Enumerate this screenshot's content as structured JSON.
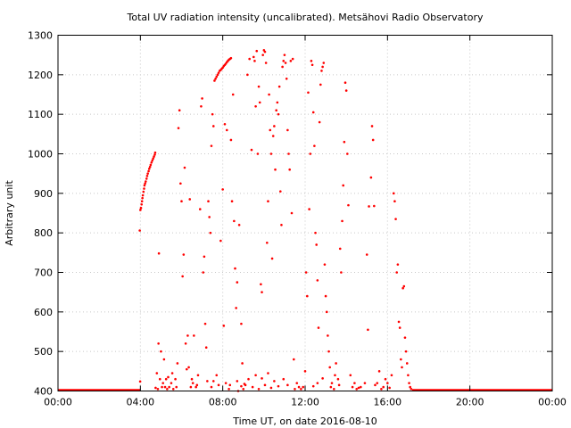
{
  "chart_data": {
    "type": "scatter",
    "title": "Total UV radiation intensity (uncalibrated). Metsähovi Radio Observatory",
    "xlabel": "Time UT, on date 2016-08-10",
    "ylabel": "Arbitrary unit",
    "xlim": [
      0,
      24
    ],
    "ylim": [
      400,
      1300
    ],
    "x_ticks": [
      0,
      4,
      8,
      12,
      16,
      20,
      24
    ],
    "x_tick_labels": [
      "00:00",
      "04:00",
      "08:00",
      "12:00",
      "16:00",
      "20:00",
      "00:00"
    ],
    "y_ticks": [
      400,
      500,
      600,
      700,
      800,
      900,
      1000,
      1100,
      1200,
      1300
    ],
    "y_tick_labels": [
      "400",
      "500",
      "600",
      "700",
      "800",
      "900",
      "1000",
      "1100",
      "1200",
      "1300"
    ],
    "grid": true,
    "legend": "none",
    "color": "#ff0000",
    "baseline_segments": [
      [
        0,
        4.0,
        400
      ],
      [
        17.2,
        24,
        400
      ]
    ],
    "series": [
      {
        "values": [
          [
            3.97,
            806
          ],
          [
            3.99,
            424
          ],
          [
            4.0,
            858
          ],
          [
            4.03,
            863
          ],
          [
            4.06,
            872
          ],
          [
            4.08,
            880
          ],
          [
            4.1,
            888
          ],
          [
            4.12,
            895
          ],
          [
            4.15,
            904
          ],
          [
            4.18,
            912
          ],
          [
            4.2,
            920
          ],
          [
            4.23,
            925
          ],
          [
            4.26,
            930
          ],
          [
            4.3,
            937
          ],
          [
            4.33,
            944
          ],
          [
            4.36,
            950
          ],
          [
            4.4,
            956
          ],
          [
            4.43,
            962
          ],
          [
            4.47,
            967
          ],
          [
            4.5,
            972
          ],
          [
            4.54,
            978
          ],
          [
            4.58,
            983
          ],
          [
            4.62,
            988
          ],
          [
            4.66,
            993
          ],
          [
            4.7,
            998
          ],
          [
            4.72,
            1003
          ],
          [
            4.74,
            408
          ],
          [
            4.8,
            445
          ],
          [
            4.85,
            405
          ],
          [
            4.88,
            520
          ],
          [
            4.9,
            748
          ],
          [
            4.95,
            430
          ],
          [
            5.0,
            500
          ],
          [
            5.05,
            410
          ],
          [
            5.1,
            420
          ],
          [
            5.15,
            480
          ],
          [
            5.2,
            410
          ],
          [
            5.25,
            430
          ],
          [
            5.3,
            405
          ],
          [
            5.4,
            410
          ],
          [
            5.5,
            420
          ],
          [
            5.6,
            405
          ],
          [
            5.7,
            430
          ],
          [
            5.8,
            470
          ],
          [
            5.85,
            1065
          ],
          [
            5.9,
            1110
          ],
          [
            5.95,
            925
          ],
          [
            6.0,
            880
          ],
          [
            6.05,
            690
          ],
          [
            6.1,
            745
          ],
          [
            6.15,
            965
          ],
          [
            6.2,
            520
          ],
          [
            6.25,
            455
          ],
          [
            6.3,
            540
          ],
          [
            6.4,
            885
          ],
          [
            6.45,
            410
          ],
          [
            6.5,
            430
          ],
          [
            6.55,
            420
          ],
          [
            6.6,
            540
          ],
          [
            6.7,
            410
          ],
          [
            6.8,
            440
          ],
          [
            6.9,
            860
          ],
          [
            6.95,
            1120
          ],
          [
            7.0,
            1140
          ],
          [
            7.05,
            700
          ],
          [
            7.1,
            740
          ],
          [
            7.15,
            570
          ],
          [
            7.2,
            510
          ],
          [
            7.3,
            880
          ],
          [
            7.35,
            840
          ],
          [
            7.4,
            800
          ],
          [
            7.45,
            1020
          ],
          [
            7.5,
            1100
          ],
          [
            7.55,
            1070
          ],
          [
            7.6,
            1185
          ],
          [
            7.65,
            1190
          ],
          [
            7.7,
            1195
          ],
          [
            7.75,
            1200
          ],
          [
            7.8,
            1205
          ],
          [
            7.85,
            1210
          ],
          [
            7.9,
            1212
          ],
          [
            7.95,
            1215
          ],
          [
            8.0,
            1218
          ],
          [
            8.05,
            1222
          ],
          [
            8.1,
            1225
          ],
          [
            8.15,
            1228
          ],
          [
            8.2,
            1232
          ],
          [
            8.25,
            1235
          ],
          [
            8.3,
            1238
          ],
          [
            8.35,
            1240
          ],
          [
            8.4,
            1242
          ],
          [
            7.55,
            425
          ],
          [
            7.7,
            440
          ],
          [
            7.8,
            415
          ],
          [
            7.9,
            780
          ],
          [
            8.0,
            910
          ],
          [
            8.05,
            565
          ],
          [
            8.1,
            1075
          ],
          [
            8.2,
            1060
          ],
          [
            8.3,
            405
          ],
          [
            8.4,
            1035
          ],
          [
            8.45,
            880
          ],
          [
            8.5,
            1150
          ],
          [
            8.55,
            830
          ],
          [
            8.6,
            710
          ],
          [
            8.65,
            610
          ],
          [
            8.7,
            675
          ],
          [
            8.75,
            400
          ],
          [
            8.8,
            820
          ],
          [
            8.9,
            570
          ],
          [
            8.95,
            470
          ],
          [
            9.0,
            405
          ],
          [
            9.1,
            415
          ],
          [
            9.2,
            1200
          ],
          [
            9.3,
            1240
          ],
          [
            9.4,
            1010
          ],
          [
            9.5,
            1245
          ],
          [
            9.55,
            1235
          ],
          [
            9.6,
            1120
          ],
          [
            9.65,
            1260
          ],
          [
            9.7,
            1000
          ],
          [
            9.75,
            1170
          ],
          [
            9.8,
            1130
          ],
          [
            9.85,
            670
          ],
          [
            9.9,
            650
          ],
          [
            9.95,
            1250
          ],
          [
            10.0,
            1262
          ],
          [
            10.05,
            1258
          ],
          [
            10.1,
            1230
          ],
          [
            10.15,
            775
          ],
          [
            10.2,
            880
          ],
          [
            10.25,
            1150
          ],
          [
            10.3,
            1060
          ],
          [
            10.35,
            1000
          ],
          [
            10.4,
            735
          ],
          [
            10.45,
            1045
          ],
          [
            10.5,
            1070
          ],
          [
            10.55,
            960
          ],
          [
            10.6,
            1110
          ],
          [
            10.65,
            1130
          ],
          [
            10.7,
            1100
          ],
          [
            10.75,
            1170
          ],
          [
            10.8,
            905
          ],
          [
            10.85,
            820
          ],
          [
            10.9,
            1220
          ],
          [
            10.95,
            1235
          ],
          [
            11.0,
            1250
          ],
          [
            11.05,
            1230
          ],
          [
            11.1,
            1190
          ],
          [
            11.15,
            1060
          ],
          [
            11.2,
            1000
          ],
          [
            11.25,
            960
          ],
          [
            11.3,
            1235
          ],
          [
            11.35,
            850
          ],
          [
            11.4,
            1240
          ],
          [
            11.45,
            480
          ],
          [
            11.5,
            405
          ],
          [
            11.6,
            420
          ],
          [
            11.7,
            410
          ],
          [
            11.8,
            405
          ],
          [
            11.9,
            410
          ],
          [
            12.0,
            450
          ],
          [
            12.05,
            700
          ],
          [
            12.1,
            640
          ],
          [
            12.15,
            1155
          ],
          [
            12.2,
            860
          ],
          [
            12.25,
            1000
          ],
          [
            12.3,
            1235
          ],
          [
            12.35,
            1225
          ],
          [
            12.4,
            1105
          ],
          [
            12.45,
            1020
          ],
          [
            12.5,
            800
          ],
          [
            12.55,
            770
          ],
          [
            12.6,
            680
          ],
          [
            12.65,
            560
          ],
          [
            12.7,
            1080
          ],
          [
            12.75,
            1175
          ],
          [
            12.8,
            1210
          ],
          [
            12.85,
            1220
          ],
          [
            12.9,
            1230
          ],
          [
            12.95,
            720
          ],
          [
            13.0,
            640
          ],
          [
            13.05,
            600
          ],
          [
            13.1,
            540
          ],
          [
            13.15,
            500
          ],
          [
            13.2,
            460
          ],
          [
            13.3,
            420
          ],
          [
            13.4,
            405
          ],
          [
            13.5,
            470
          ],
          [
            13.6,
            430
          ],
          [
            13.7,
            760
          ],
          [
            13.75,
            700
          ],
          [
            13.8,
            830
          ],
          [
            13.85,
            920
          ],
          [
            13.9,
            1030
          ],
          [
            13.95,
            1180
          ],
          [
            14.0,
            1160
          ],
          [
            14.05,
            1000
          ],
          [
            14.1,
            870
          ],
          [
            14.2,
            440
          ],
          [
            14.3,
            410
          ],
          [
            14.5,
            405
          ],
          [
            14.7,
            410
          ],
          [
            14.9,
            420
          ],
          [
            15.0,
            745
          ],
          [
            15.05,
            555
          ],
          [
            15.1,
            867
          ],
          [
            15.2,
            940
          ],
          [
            15.25,
            1070
          ],
          [
            15.3,
            1035
          ],
          [
            15.35,
            868
          ],
          [
            15.5,
            420
          ],
          [
            15.6,
            450
          ],
          [
            15.7,
            405
          ],
          [
            15.8,
            410
          ],
          [
            16.0,
            420
          ],
          [
            16.2,
            440
          ],
          [
            16.3,
            900
          ],
          [
            16.35,
            880
          ],
          [
            16.4,
            835
          ],
          [
            16.45,
            700
          ],
          [
            16.5,
            720
          ],
          [
            16.55,
            575
          ],
          [
            16.6,
            560
          ],
          [
            16.65,
            480
          ],
          [
            16.7,
            460
          ],
          [
            16.75,
            660
          ],
          [
            16.8,
            665
          ],
          [
            16.85,
            535
          ],
          [
            16.9,
            500
          ],
          [
            16.95,
            470
          ],
          [
            17.0,
            440
          ],
          [
            17.05,
            420
          ],
          [
            17.1,
            410
          ],
          [
            17.15,
            405
          ],
          [
            8.7,
            425
          ],
          [
            8.9,
            412
          ],
          [
            9.05,
            418
          ],
          [
            9.25,
            430
          ],
          [
            9.45,
            410
          ],
          [
            9.6,
            440
          ],
          [
            9.75,
            405
          ],
          [
            9.9,
            432
          ],
          [
            10.05,
            415
          ],
          [
            10.2,
            445
          ],
          [
            10.35,
            408
          ],
          [
            10.5,
            425
          ],
          [
            10.7,
            412
          ],
          [
            10.95,
            430
          ],
          [
            11.15,
            415
          ],
          [
            5.35,
            435
          ],
          [
            5.55,
            445
          ],
          [
            5.75,
            410
          ],
          [
            6.35,
            460
          ],
          [
            6.75,
            415
          ],
          [
            7.25,
            425
          ],
          [
            7.45,
            410
          ],
          [
            8.15,
            420
          ],
          [
            8.35,
            415
          ],
          [
            12.4,
            412
          ],
          [
            12.6,
            420
          ],
          [
            12.85,
            432
          ],
          [
            13.25,
            410
          ],
          [
            13.45,
            440
          ],
          [
            13.65,
            415
          ],
          [
            14.4,
            420
          ],
          [
            14.6,
            408
          ],
          [
            15.4,
            415
          ],
          [
            15.9,
            430
          ],
          [
            16.1,
            408
          ]
        ]
      }
    ]
  }
}
